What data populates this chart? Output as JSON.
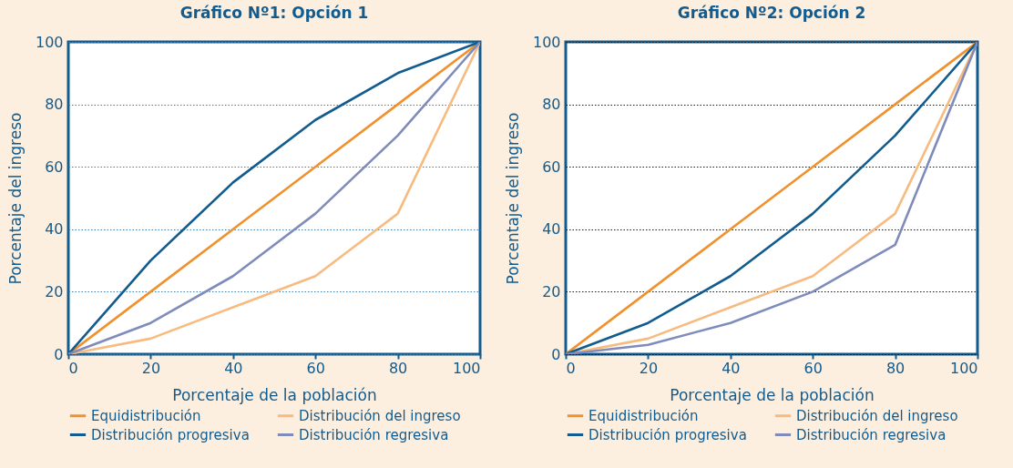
{
  "chart_data": [
    {
      "type": "line",
      "title": "Gráfico Nº1: Opción 1",
      "xlabel": "Porcentaje de la población",
      "ylabel": "Porcentaje del ingreso",
      "x": [
        0,
        20,
        40,
        60,
        80,
        100
      ],
      "xlim": [
        0,
        100
      ],
      "ylim": [
        0,
        100
      ],
      "xticks": [
        0,
        20,
        40,
        60,
        80,
        100
      ],
      "yticks": [
        0,
        20,
        40,
        60,
        80,
        100
      ],
      "grid": "y",
      "legend": "bottom",
      "series": [
        {
          "name": "Equidistribución",
          "color": "#f0912e",
          "values": [
            0,
            20,
            40,
            60,
            80,
            100
          ]
        },
        {
          "name": "Distribución del ingreso",
          "color": "#f7bb80",
          "values": [
            0,
            5,
            15,
            25,
            45,
            100
          ]
        },
        {
          "name": "Distribución progresiva",
          "color": "#115b8e",
          "values": [
            0,
            30,
            55,
            75,
            90,
            100
          ]
        },
        {
          "name": "Distribución regresiva",
          "color": "#7f8cbb",
          "values": [
            0,
            10,
            25,
            45,
            70,
            100
          ]
        }
      ]
    },
    {
      "type": "line",
      "title": "Gráfico Nº2: Opción 2",
      "xlabel": "Porcentaje de la población",
      "ylabel": "Porcentaje del ingreso",
      "x": [
        0,
        20,
        40,
        60,
        80,
        100
      ],
      "xlim": [
        0,
        100
      ],
      "ylim": [
        0,
        100
      ],
      "xticks": [
        0,
        20,
        40,
        60,
        80,
        100
      ],
      "yticks": [
        0,
        20,
        40,
        60,
        80,
        100
      ],
      "grid": "y",
      "legend": "bottom",
      "series": [
        {
          "name": "Equidistribución",
          "color": "#f0912e",
          "values": [
            0,
            20,
            40,
            60,
            80,
            100
          ]
        },
        {
          "name": "Distribución del ingreso",
          "color": "#f7bb80",
          "values": [
            0,
            5,
            15,
            25,
            45,
            100
          ]
        },
        {
          "name": "Distribución progresiva",
          "color": "#115b8e",
          "values": [
            0,
            10,
            25,
            45,
            70,
            100
          ]
        },
        {
          "name": "Distribución regresiva",
          "color": "#7f8cbb",
          "values": [
            0,
            3,
            10,
            20,
            35,
            100
          ]
        }
      ]
    }
  ]
}
